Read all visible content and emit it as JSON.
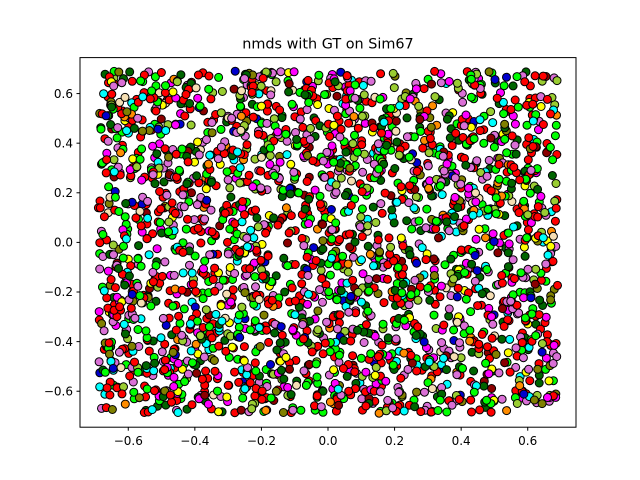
{
  "chart_data": {
    "type": "scatter",
    "title": "nmds with GT on Sim67",
    "xlabel": "",
    "ylabel": "",
    "xlim": [
      -0.745,
      0.745
    ],
    "ylim": [
      -0.745,
      0.745
    ],
    "xticks": [
      -0.6,
      -0.4,
      -0.2,
      0.0,
      0.2,
      0.4,
      0.6
    ],
    "xtick_labels": [
      "−0.6",
      "−0.4",
      "−0.2",
      "0.0",
      "0.2",
      "0.4",
      "0.6"
    ],
    "yticks": [
      -0.6,
      -0.4,
      -0.2,
      0.0,
      0.2,
      0.4,
      0.6
    ],
    "ytick_labels": [
      "−0.6",
      "−0.4",
      "−0.2",
      "0.0",
      "0.2",
      "0.4",
      "0.6"
    ],
    "grid": false,
    "legend": "none",
    "marker_edge_color": "#000000",
    "point_domain": {
      "x": [
        -0.69,
        0.69
      ],
      "y": [
        -0.69,
        0.69
      ]
    },
    "point_count": 2600,
    "series": [
      {
        "color": "#ff0000",
        "weight": 26
      },
      {
        "color": "#00ff00",
        "weight": 16
      },
      {
        "color": "#006400",
        "weight": 10
      },
      {
        "color": "#da70d6",
        "weight": 13
      },
      {
        "color": "#ff00ff",
        "weight": 6
      },
      {
        "color": "#00ffff",
        "weight": 6
      },
      {
        "color": "#9acd32",
        "weight": 7
      },
      {
        "color": "#ffff00",
        "weight": 3
      },
      {
        "color": "#0000cd",
        "weight": 3
      },
      {
        "color": "#8b0000",
        "weight": 3
      },
      {
        "color": "#ff8c00",
        "weight": 2
      },
      {
        "color": "#f5deb3",
        "weight": 2
      },
      {
        "color": "#808000",
        "weight": 3
      }
    ]
  }
}
